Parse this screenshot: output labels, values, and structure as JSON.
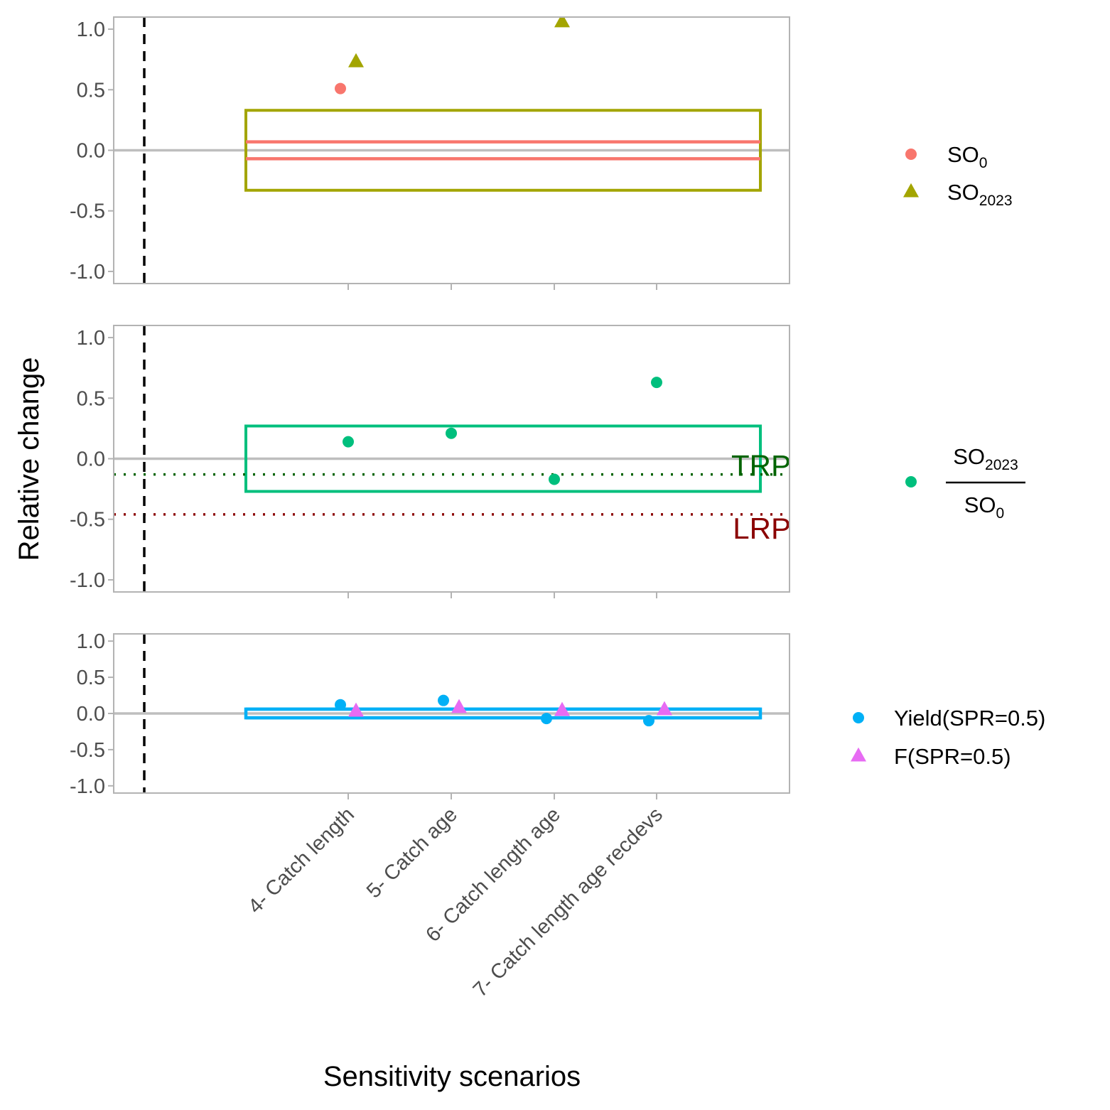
{
  "chart_data": {
    "type": "scatter",
    "xlabel": "Sensitivity scenarios",
    "ylabel": "Relative change",
    "categories": [
      "4- Catch length",
      "5- Catch age",
      "6- Catch length age",
      "7- Catch length age recdevs"
    ],
    "ylim": [
      -1.1,
      1.1
    ],
    "yticks": [
      1.0,
      0.5,
      0.0,
      -0.5,
      -1.0
    ],
    "ytick_labels": [
      "1.0",
      "0.5",
      "0.0",
      "-0.5",
      "-1.0"
    ],
    "grid": false,
    "legend_position": "right",
    "panels": [
      {
        "id": "spawning-output",
        "series": [
          {
            "legend_main": "SO",
            "legend_sub": "0",
            "color": "#F8766D",
            "shape": "circle",
            "values": [
              0.51,
              null,
              null,
              null
            ]
          },
          {
            "legend_main": "SO",
            "legend_sub": "2023",
            "color": "#A3A500",
            "shape": "triangle",
            "values": [
              0.73,
              null,
              1.06,
              null
            ]
          }
        ],
        "bands": [
          {
            "series": "SO2023",
            "color": "#A3A500",
            "ymin": -0.33,
            "ymax": 0.33
          },
          {
            "series": "SO0",
            "color": "#F8766D",
            "ymin": -0.07,
            "ymax": 0.07
          }
        ],
        "reference_lines": []
      },
      {
        "id": "depletion",
        "series": [
          {
            "legend_numerator_main": "SO",
            "legend_numerator_sub": "2023",
            "legend_denominator_main": "SO",
            "legend_denominator_sub": "0",
            "color": "#00BF7D",
            "shape": "circle",
            "values": [
              0.14,
              0.21,
              -0.17,
              0.63
            ]
          }
        ],
        "bands": [
          {
            "series": "depletion",
            "color": "#00BF7D",
            "ymin": -0.27,
            "ymax": 0.27
          }
        ],
        "reference_lines": [
          {
            "label": "TRP",
            "value": -0.13,
            "color": "#006400"
          },
          {
            "label": "LRP",
            "value": -0.46,
            "color": "#8B0000"
          }
        ]
      },
      {
        "id": "yield-f",
        "series": [
          {
            "name": "Yield(SPR=0.5)",
            "color": "#00B0F6",
            "shape": "circle",
            "values": [
              0.12,
              0.18,
              -0.07,
              -0.1
            ]
          },
          {
            "name": "F(SPR=0.5)",
            "color": "#E76BF3",
            "shape": "triangle",
            "values": [
              0.03,
              0.08,
              0.04,
              0.05
            ]
          }
        ],
        "bands": [
          {
            "series": "Yield(SPR=0.5)",
            "color": "#00B0F6",
            "ymin": -0.06,
            "ymax": 0.06
          }
        ],
        "reference_lines": []
      }
    ]
  }
}
